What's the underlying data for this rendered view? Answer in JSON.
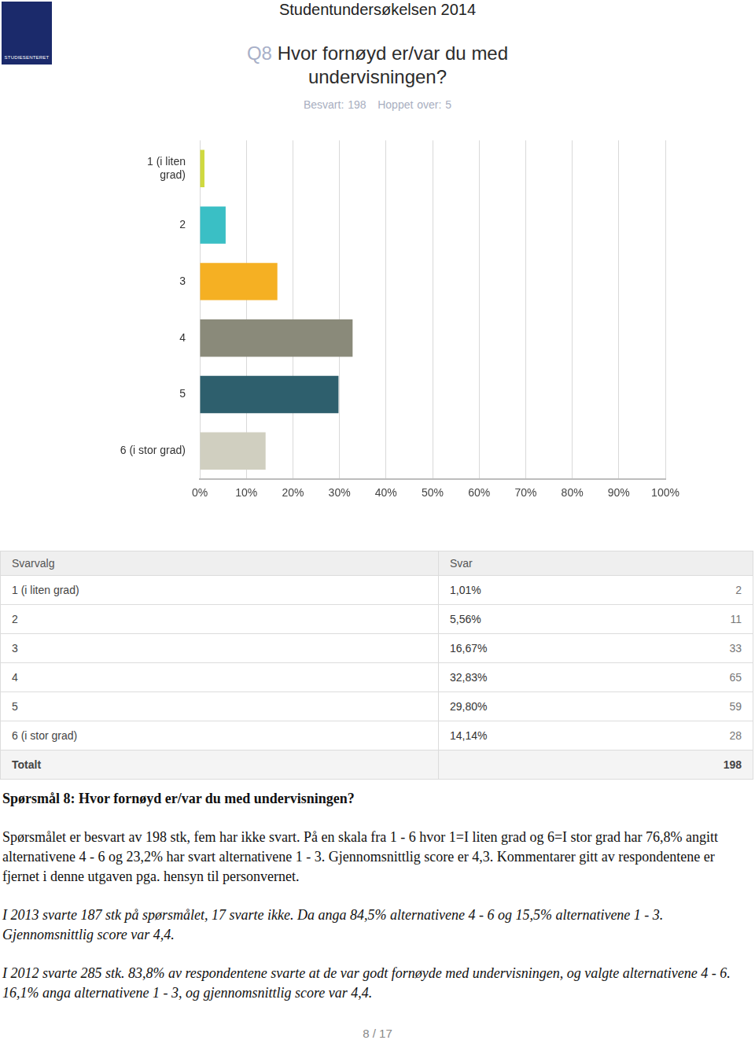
{
  "page": {
    "logo_text": "STUDIESENTERET",
    "page_title": "Studentundersøkelsen 2014",
    "question_number": "Q8",
    "footer": "8 / 17"
  },
  "chart_data": {
    "type": "bar",
    "orientation": "horizontal",
    "title": "Hvor fornøyd er/var du med undervisningen?",
    "subtitle": "Besvart: 198   Hoppet over: 5",
    "categories": [
      "1 (i liten\ngrad)",
      "2",
      "3",
      "4",
      "5",
      "6 (i stor grad)"
    ],
    "values": [
      1.01,
      5.56,
      16.67,
      32.83,
      29.8,
      14.14
    ],
    "colors": [
      "#cfd940",
      "#3abfc5",
      "#f5b023",
      "#8a8a7a",
      "#2e5f6d",
      "#d0cfc0"
    ],
    "xlim": [
      0,
      100
    ],
    "xticks": [
      {
        "value": 0,
        "label": "0%"
      },
      {
        "value": 10,
        "label": "10%"
      },
      {
        "value": 20,
        "label": "20%"
      },
      {
        "value": 30,
        "label": "30%"
      },
      {
        "value": 40,
        "label": "40%"
      },
      {
        "value": 50,
        "label": "50%"
      },
      {
        "value": 60,
        "label": "60%"
      },
      {
        "value": 70,
        "label": "70%"
      },
      {
        "value": 80,
        "label": "80%"
      },
      {
        "value": 90,
        "label": "90%"
      },
      {
        "value": 100,
        "label": "100%"
      }
    ],
    "grid": true
  },
  "table": {
    "header": [
      "Svarvalg",
      "Svar"
    ],
    "rows": [
      [
        "1 (i liten grad)",
        "1,01%",
        2
      ],
      [
        "2",
        "5,56%",
        11
      ],
      [
        "3",
        "16,67%",
        33
      ],
      [
        "4",
        "32,83%",
        65
      ],
      [
        "5",
        "29,80%",
        59
      ],
      [
        "6 (i stor grad)",
        "14,14%",
        28
      ]
    ],
    "total": [
      "Totalt",
      198
    ]
  },
  "text": {
    "heading": "Spørsmål 8: Hvor fornøyd er/var du med undervisningen?",
    "paragraph": "Spørsmålet er besvart av 198 stk, fem har ikke svart. På en skala fra 1 - 6 hvor 1=I liten grad og 6=I stor grad har 76,8% angitt alternativene 4 - 6 og 23,2% har svart alternativene 1 - 3. Gjennomsnittlig score er 4,3. Kommentarer gitt av respondentene er fjernet i denne utgaven pga. hensyn til personvernet.",
    "history": [
      "I 2013 svarte 187 stk på spørsmålet, 17 svarte ikke. Da anga 84,5% alternativene 4 - 6 og 15,5% alternativene 1 - 3. Gjennomsnittlig score var 4,4.",
      "I 2012 svarte 285 stk. 83,8% av respondentene svarte at de var godt fornøyde med undervisningen, og valgte alternativene 4 - 6. 16,1% anga alternativene 1 - 3, og gjennomsnittlig score var 4,4."
    ]
  }
}
